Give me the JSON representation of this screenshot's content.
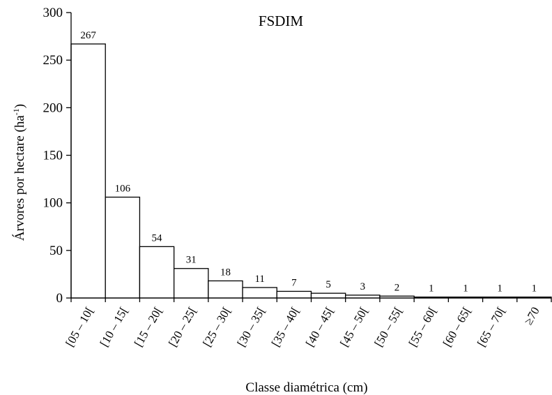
{
  "chart_data": {
    "type": "bar",
    "title": "FSDIM",
    "xlabel": "Classe diamétrica  (cm)",
    "ylabel_main": "Árvores por hectare (ha",
    "ylabel_sup": "-1",
    "ylabel_tail": ")",
    "categories": [
      "[05 – 10[",
      "[10 – 15[",
      "[15 – 20[",
      "[20 – 25[",
      "[25 – 30[",
      "[30 – 35[",
      "[35 – 40[",
      "[40 – 45[",
      "[45 – 50[",
      "[50 – 55[",
      "[55 – 60[",
      "[60 – 65[",
      "[65 – 70[",
      "≥70"
    ],
    "values": [
      267,
      106,
      54,
      31,
      18,
      11,
      7,
      5,
      3,
      2,
      1,
      1,
      1,
      1
    ],
    "data_labels": [
      "267",
      "106",
      "54",
      "31",
      "18",
      "11",
      "7",
      "5",
      "3",
      "2",
      "1",
      "1",
      "1",
      "1"
    ],
    "yticks": [
      "0",
      "50",
      "100",
      "150",
      "200",
      "250",
      "300"
    ],
    "ylim": [
      0,
      300
    ],
    "grid": false,
    "bar_fill": "#ffffff",
    "bar_stroke": "#000000"
  }
}
